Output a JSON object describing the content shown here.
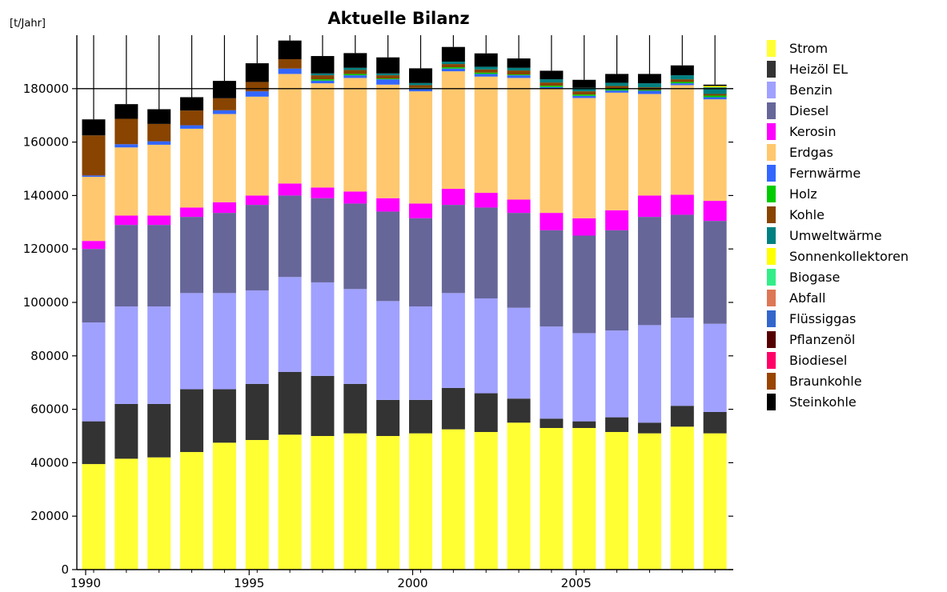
{
  "chart_data": {
    "type": "bar",
    "stacked": true,
    "title": "Aktuelle Bilanz",
    "ylabel": "[t/Jahr]",
    "xlabel": "",
    "ylim": [
      0,
      200000
    ],
    "yticks": [
      0,
      20000,
      40000,
      60000,
      80000,
      100000,
      120000,
      140000,
      160000,
      180000
    ],
    "ytick_labels": [
      "0",
      "20000",
      "40000",
      "60000",
      "80000",
      "100000",
      "120000",
      "140000",
      "160000",
      "180000"
    ],
    "xtick_labels": [
      "1990",
      "1995",
      "2000",
      "2005"
    ],
    "xtick_years": [
      1990,
      1995,
      2000,
      2005
    ],
    "grid": "horizontal at 180000",
    "legend_position": "right",
    "categories": [
      1990,
      1991,
      1992,
      1993,
      1994,
      1995,
      1996,
      1997,
      1998,
      1999,
      2000,
      2001,
      2002,
      2003,
      2004,
      2005,
      2006,
      2007,
      2008,
      2009
    ],
    "series": [
      {
        "name": "Strom",
        "color": "#FFFF33",
        "values": [
          39500,
          41500,
          42000,
          44000,
          47500,
          48500,
          50500,
          50000,
          51000,
          50000,
          51000,
          52500,
          51500,
          55000,
          53000,
          53000,
          51500,
          51000,
          53500,
          51000
        ]
      },
      {
        "name": "Heizöl EL",
        "color": "#333333",
        "values": [
          16000,
          20500,
          20000,
          23500,
          20000,
          21000,
          23500,
          22500,
          18500,
          13500,
          12500,
          15500,
          14500,
          9000,
          3500,
          2500,
          5500,
          4000,
          7800,
          8000
        ]
      },
      {
        "name": "Benzin",
        "color": "#A0A0FF",
        "values": [
          37000,
          36500,
          36500,
          36000,
          36000,
          35000,
          35500,
          35000,
          35500,
          37000,
          35000,
          35500,
          35500,
          34000,
          34500,
          33000,
          32500,
          36500,
          33000,
          33000
        ]
      },
      {
        "name": "Diesel",
        "color": "#666699",
        "values": [
          27500,
          30500,
          30500,
          28500,
          30000,
          32000,
          30500,
          31500,
          32000,
          33500,
          33000,
          33000,
          34000,
          35500,
          36000,
          36500,
          37500,
          40500,
          38500,
          38500
        ]
      },
      {
        "name": "Kerosin",
        "color": "#FF00FF",
        "values": [
          3000,
          3500,
          3500,
          3500,
          4000,
          3500,
          4500,
          4000,
          4500,
          5000,
          5500,
          6000,
          5500,
          5000,
          6500,
          6500,
          7500,
          8000,
          7500,
          7500
        ]
      },
      {
        "name": "Erdgas",
        "color": "#FFC86E",
        "values": [
          24000,
          25500,
          26500,
          29500,
          33000,
          37000,
          41000,
          39000,
          42500,
          42500,
          42000,
          44000,
          43500,
          45500,
          46500,
          45000,
          44000,
          38000,
          41000,
          38000
        ]
      },
      {
        "name": "Fernwärme",
        "color": "#3366FF",
        "values": [
          500,
          1200,
          1300,
          1300,
          1400,
          2000,
          2000,
          1000,
          1000,
          2000,
          1000,
          1000,
          1000,
          1000,
          600,
          800,
          800,
          1200,
          700,
          800
        ]
      },
      {
        "name": "Holz",
        "color": "#00CC00",
        "values": [
          0,
          0,
          0,
          0,
          0,
          0,
          0,
          500,
          500,
          300,
          300,
          500,
          500,
          300,
          500,
          500,
          500,
          300,
          500,
          600
        ]
      },
      {
        "name": "Kohle",
        "color": "#884400",
        "values": [
          15000,
          9500,
          6500,
          5500,
          4500,
          3500,
          3500,
          1500,
          1500,
          1200,
          1000,
          1200,
          1200,
          1500,
          1200,
          1200,
          1200,
          1000,
          1000,
          600
        ]
      },
      {
        "name": "Umweltwärme",
        "color": "#008080",
        "values": [
          0,
          0,
          0,
          0,
          0,
          0,
          0,
          700,
          800,
          700,
          800,
          900,
          1000,
          1000,
          1200,
          1300,
          1200,
          1500,
          1500,
          2500
        ]
      },
      {
        "name": "Sonnenkollektoren",
        "color": "#FFFF00",
        "values": [
          0,
          0,
          0,
          0,
          0,
          0,
          0,
          0,
          0,
          0,
          0,
          0,
          0,
          0,
          0,
          0,
          0,
          0,
          0,
          500
        ]
      },
      {
        "name": "Biogase",
        "color": "#33EE88",
        "values": [
          0,
          0,
          0,
          0,
          0,
          0,
          0,
          0,
          0,
          0,
          0,
          0,
          0,
          0,
          0,
          0,
          0,
          0,
          0,
          0
        ]
      },
      {
        "name": "Abfall",
        "color": "#DD7755",
        "values": [
          0,
          0,
          0,
          0,
          0,
          0,
          0,
          0,
          0,
          0,
          0,
          0,
          0,
          0,
          0,
          0,
          0,
          0,
          0,
          0
        ]
      },
      {
        "name": "Flüssiggas",
        "color": "#3366CC",
        "values": [
          0,
          0,
          0,
          0,
          0,
          0,
          0,
          0,
          0,
          0,
          0,
          0,
          0,
          0,
          0,
          0,
          0,
          0,
          0,
          0
        ]
      },
      {
        "name": "Pflanzenöl",
        "color": "#550000",
        "values": [
          0,
          0,
          0,
          0,
          0,
          0,
          0,
          0,
          0,
          0,
          0,
          0,
          0,
          0,
          0,
          0,
          0,
          0,
          0,
          0
        ]
      },
      {
        "name": "Biodiesel",
        "color": "#FF0066",
        "values": [
          0,
          0,
          0,
          0,
          0,
          0,
          0,
          0,
          0,
          0,
          0,
          0,
          0,
          0,
          0,
          0,
          0,
          0,
          0,
          0
        ]
      },
      {
        "name": "Braunkohle",
        "color": "#994400",
        "values": [
          0,
          0,
          0,
          0,
          0,
          0,
          0,
          0,
          0,
          0,
          0,
          0,
          0,
          0,
          0,
          0,
          0,
          0,
          0,
          0
        ]
      },
      {
        "name": "Steinkohle",
        "color": "#000000",
        "values": [
          6000,
          5500,
          5500,
          5000,
          6500,
          7000,
          7000,
          6500,
          5500,
          6000,
          5500,
          5500,
          5000,
          3500,
          3200,
          3000,
          3300,
          3500,
          3700,
          500
        ]
      }
    ]
  }
}
